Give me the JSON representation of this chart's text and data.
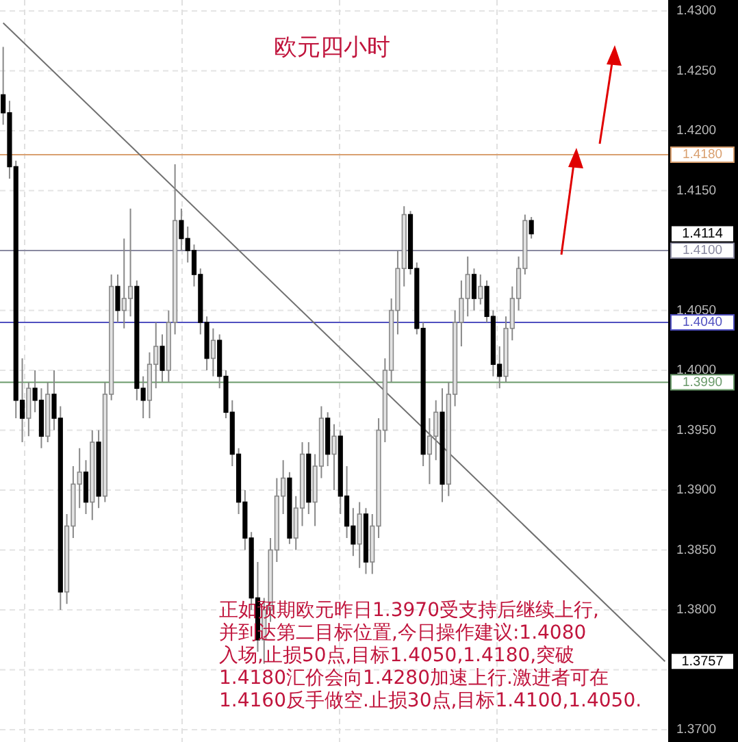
{
  "chart_data": {
    "type": "candlestick",
    "title": "欧元四小时",
    "categories": [
      null,
      null,
      null,
      null,
      null,
      null,
      null,
      null,
      null,
      null,
      null,
      null,
      null,
      null,
      null,
      null,
      null,
      null,
      null,
      null,
      null,
      null,
      null,
      null,
      null,
      null,
      null,
      null,
      null,
      null,
      null,
      null,
      null,
      null,
      null,
      null,
      null,
      null,
      null,
      null,
      null,
      null,
      null,
      null,
      null,
      null,
      null,
      null,
      null,
      null,
      null,
      null,
      null,
      null,
      null,
      null,
      null,
      null,
      null,
      null,
      null,
      null,
      null,
      null,
      null,
      null,
      null,
      null,
      null,
      null,
      null,
      null,
      null,
      null,
      null,
      null,
      null,
      null,
      null,
      null,
      null,
      null,
      null,
      null,
      null,
      null,
      null,
      null,
      null,
      null,
      null,
      null,
      null,
      null,
      null,
      null,
      null,
      null,
      null,
      null,
      null,
      null,
      null,
      null,
      null
    ],
    "ohlc": [
      [
        1.423,
        1.427,
        1.4205,
        1.4215
      ],
      [
        1.4215,
        1.4225,
        1.416,
        1.417
      ],
      [
        1.417,
        1.4175,
        1.396,
        1.3975
      ],
      [
        1.3975,
        1.401,
        1.394,
        1.396
      ],
      [
        1.396,
        1.399,
        1.3945,
        1.3985
      ],
      [
        1.3985,
        1.4,
        1.3965,
        1.3975
      ],
      [
        1.3975,
        1.3985,
        1.3935,
        1.3945
      ],
      [
        1.3945,
        1.399,
        1.394,
        1.398
      ],
      [
        1.398,
        1.4,
        1.395,
        1.396
      ],
      [
        1.396,
        1.397,
        1.38,
        1.3815
      ],
      [
        1.3815,
        1.388,
        1.3805,
        1.387
      ],
      [
        1.387,
        1.392,
        1.386,
        1.3905
      ],
      [
        1.3905,
        1.3935,
        1.3885,
        1.3915
      ],
      [
        1.3915,
        1.3925,
        1.388,
        1.389
      ],
      [
        1.389,
        1.395,
        1.3875,
        1.394
      ],
      [
        1.394,
        1.395,
        1.3885,
        1.3895
      ],
      [
        1.3895,
        1.399,
        1.389,
        1.398
      ],
      [
        1.398,
        1.408,
        1.3975,
        1.407
      ],
      [
        1.407,
        1.408,
        1.404,
        1.405
      ],
      [
        1.405,
        1.411,
        1.4035,
        1.406
      ],
      [
        1.406,
        1.4135,
        1.4045,
        1.407
      ],
      [
        1.407,
        1.4075,
        1.3975,
        1.3985
      ],
      [
        1.3985,
        1.3995,
        1.396,
        1.3975
      ],
      [
        1.3975,
        1.4015,
        1.396,
        1.4005
      ],
      [
        1.4005,
        1.404,
        1.3985,
        1.402
      ],
      [
        1.402,
        1.403,
        1.399,
        1.4
      ],
      [
        1.4,
        1.405,
        1.399,
        1.404
      ],
      [
        1.404,
        1.4172,
        1.403,
        1.4125
      ],
      [
        1.4125,
        1.4135,
        1.41,
        1.411
      ],
      [
        1.411,
        1.412,
        1.409,
        1.41
      ],
      [
        1.41,
        1.4105,
        1.407,
        1.408
      ],
      [
        1.408,
        1.4085,
        1.403,
        1.404
      ],
      [
        1.404,
        1.4045,
        1.4,
        1.401
      ],
      [
        1.401,
        1.4035,
        1.3995,
        1.4025
      ],
      [
        1.4025,
        1.403,
        1.3985,
        1.3995
      ],
      [
        1.3995,
        1.4,
        1.396,
        1.3965
      ],
      [
        1.3965,
        1.3975,
        1.392,
        1.393
      ],
      [
        1.393,
        1.3935,
        1.388,
        1.389
      ],
      [
        1.389,
        1.39,
        1.385,
        1.386
      ],
      [
        1.386,
        1.3865,
        1.38,
        1.381
      ],
      [
        1.381,
        1.384,
        1.3765,
        1.3775
      ],
      [
        1.3775,
        1.381,
        1.3755,
        1.38
      ],
      [
        1.38,
        1.386,
        1.379,
        1.385
      ],
      [
        1.385,
        1.391,
        1.384,
        1.3895
      ],
      [
        1.3895,
        1.3925,
        1.388,
        1.391
      ],
      [
        1.391,
        1.3915,
        1.3855,
        1.386
      ],
      [
        1.386,
        1.3895,
        1.385,
        1.3885
      ],
      [
        1.3885,
        1.394,
        1.387,
        1.393
      ],
      [
        1.393,
        1.394,
        1.388,
        1.389
      ],
      [
        1.389,
        1.393,
        1.387,
        1.392
      ],
      [
        1.392,
        1.397,
        1.391,
        1.396
      ],
      [
        1.396,
        1.3965,
        1.392,
        1.393
      ],
      [
        1.393,
        1.3955,
        1.39,
        1.3945
      ],
      [
        1.3945,
        1.395,
        1.388,
        1.3895
      ],
      [
        1.3895,
        1.392,
        1.386,
        1.387
      ],
      [
        1.387,
        1.3885,
        1.3845,
        1.3855
      ],
      [
        1.3855,
        1.389,
        1.3835,
        1.388
      ],
      [
        1.388,
        1.3885,
        1.383,
        1.384
      ],
      [
        1.384,
        1.388,
        1.383,
        1.387
      ],
      [
        1.387,
        1.396,
        1.386,
        1.395
      ],
      [
        1.395,
        1.401,
        1.394,
        1.4
      ],
      [
        1.4,
        1.406,
        1.399,
        1.405
      ],
      [
        1.405,
        1.41,
        1.403,
        1.4085
      ],
      [
        1.4085,
        1.4137,
        1.407,
        1.413
      ],
      [
        1.413,
        1.4133,
        1.408,
        1.4085
      ],
      [
        1.4085,
        1.409,
        1.403,
        1.4035
      ],
      [
        1.4035,
        1.404,
        1.392,
        1.393
      ],
      [
        1.393,
        1.396,
        1.3905,
        1.3945
      ],
      [
        1.3945,
        1.3975,
        1.3925,
        1.3965
      ],
      [
        1.3965,
        1.3985,
        1.389,
        1.3905
      ],
      [
        1.3905,
        1.399,
        1.3895,
        1.398
      ],
      [
        1.398,
        1.405,
        1.397,
        1.404
      ],
      [
        1.404,
        1.4075,
        1.402,
        1.406
      ],
      [
        1.406,
        1.4095,
        1.4045,
        1.408
      ],
      [
        1.408,
        1.4085,
        1.405,
        1.406
      ],
      [
        1.406,
        1.408,
        1.4055,
        1.407
      ],
      [
        1.407,
        1.4075,
        1.404,
        1.4045
      ],
      [
        1.4045,
        1.405,
        1.3995,
        1.4005
      ],
      [
        1.4005,
        1.402,
        1.3985,
        1.3995
      ],
      [
        1.3995,
        1.4045,
        1.399,
        1.4035
      ],
      [
        1.4035,
        1.407,
        1.4025,
        1.406
      ],
      [
        1.406,
        1.4095,
        1.405,
        1.4085
      ],
      [
        1.4085,
        1.413,
        1.408,
        1.4125
      ],
      [
        1.4125,
        1.4128,
        1.411,
        1.4114
      ],
      null,
      null,
      null,
      null,
      null,
      null,
      null,
      null,
      null,
      null,
      null,
      null,
      null,
      null,
      null,
      null,
      null,
      null,
      null,
      null,
      null
    ],
    "series": [
      {
        "type": "line",
        "color": "#707070",
        "values": [
          1.429,
          null,
          null,
          null,
          null,
          null,
          null,
          null,
          null,
          null,
          null,
          null,
          null,
          null,
          null,
          null,
          null,
          null,
          null,
          null,
          null,
          null,
          null,
          null,
          null,
          null,
          null,
          null,
          null,
          null,
          null,
          null,
          null,
          null,
          null,
          null,
          null,
          null,
          null,
          null,
          null,
          null,
          null,
          null,
          null,
          null,
          null,
          null,
          null,
          null,
          null,
          null,
          null,
          null,
          null,
          null,
          null,
          null,
          null,
          null,
          null,
          null,
          null,
          null,
          null,
          null,
          null,
          null,
          null,
          null,
          null,
          null,
          null,
          null,
          null,
          null,
          null,
          null,
          null,
          null,
          null,
          null,
          null,
          null,
          null,
          null,
          null,
          null,
          null,
          null,
          null,
          null,
          null,
          null,
          null,
          null,
          null,
          null,
          null,
          null,
          null,
          null,
          null,
          null,
          1.3757
        ]
      }
    ],
    "ylim": [
      1.37,
      1.43
    ],
    "yticks": [
      {
        "value": 1.37,
        "label": "1.3700"
      },
      {
        "value": 1.375,
        "label": null
      },
      {
        "value": 1.38,
        "label": "1.3800"
      },
      {
        "value": 1.385,
        "label": "1.3850"
      },
      {
        "value": 1.39,
        "label": "1.3900"
      },
      {
        "value": 1.395,
        "label": "1.3950"
      },
      {
        "value": 1.4,
        "label": "1.4000"
      },
      {
        "value": 1.405,
        "label": "1.4050"
      },
      {
        "value": 1.41,
        "label": null
      },
      {
        "value": 1.415,
        "label": "1.4150"
      },
      {
        "value": 1.42,
        "label": "1.4200"
      },
      {
        "value": 1.425,
        "label": "1.4250"
      },
      {
        "value": 1.43,
        "label": "1.4300"
      }
    ],
    "tick_labels": "y",
    "grid": true,
    "ref_lines": [
      {
        "axis": "y",
        "value": 1.418,
        "label": "1.4180",
        "color": "#d9a070"
      },
      {
        "axis": "y",
        "value": 1.41,
        "label": "1.4100",
        "color": "#8a8aa0"
      },
      {
        "axis": "y",
        "value": 1.404,
        "label": "1.4040",
        "color": "#5050c0"
      },
      {
        "axis": "y",
        "value": 1.399,
        "label": "1.3990",
        "color": "#6a9a6a"
      }
    ],
    "annotations": [
      "1.4114",
      "1.3757",
      "正如预期欧元昨日1.3970受支持后继续上行,",
      "并到达第二目标位置,今日操作建议:1.4080",
      "入场,止损50点,目标1.4050,1.4180,突破",
      "1.4180汇价会向1.4280加速上行.激进者可在",
      "1.4160反手做空.止损30点,目标1.4100,1.4050."
    ]
  }
}
